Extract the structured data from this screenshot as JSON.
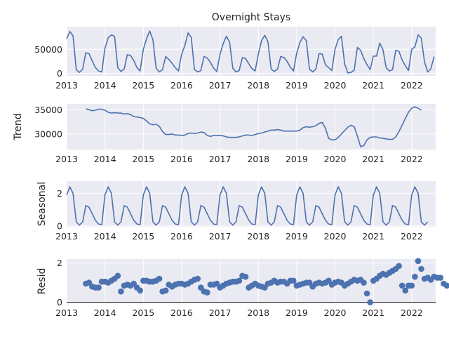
{
  "chart_data": {
    "title": "Overnight Stays",
    "type": "line",
    "x_start": "2013-01",
    "x_ticks": [
      "2013",
      "2014",
      "2015",
      "2016",
      "2017",
      "2018",
      "2019",
      "2020",
      "2021",
      "2022"
    ],
    "panels": [
      {
        "id": "observed",
        "ylabel": "",
        "type": "line",
        "ylim": [
          -5000,
          97000
        ],
        "yticks": [
          0,
          50000
        ],
        "values": [
          72000,
          87000,
          78000,
          8000,
          2000,
          9000,
          43000,
          41000,
          26000,
          12000,
          5000,
          3000,
          52000,
          74000,
          80000,
          77000,
          12000,
          4000,
          9000,
          39000,
          37000,
          27000,
          12000,
          5000,
          50000,
          72000,
          88000,
          70000,
          11000,
          3000,
          8000,
          35000,
          29000,
          21000,
          12000,
          5000,
          40000,
          58000,
          84000,
          75000,
          8000,
          3000,
          6000,
          35000,
          32000,
          23000,
          11000,
          4000,
          40000,
          62000,
          77000,
          65000,
          11000,
          3000,
          6000,
          33000,
          31000,
          20000,
          10000,
          5000,
          40000,
          68000,
          79000,
          66000,
          9000,
          4000,
          9000,
          35000,
          33000,
          25000,
          13000,
          5000,
          42000,
          64000,
          76000,
          68000,
          9000,
          3000,
          9000,
          41000,
          40000,
          18000,
          12000,
          6000,
          50000,
          70000,
          77000,
          20000,
          1000,
          2000,
          7000,
          54000,
          48000,
          31000,
          18000,
          8000,
          36000,
          36000,
          63000,
          49000,
          12000,
          5000,
          8000,
          48000,
          46000,
          28000,
          16000,
          6000,
          50000,
          55000,
          80000,
          73000,
          24000,
          3000,
          10000,
          35000
        ]
      },
      {
        "id": "trend",
        "ylabel": "Trend",
        "type": "line",
        "ylim": [
          26800,
          36200
        ],
        "yticks": [
          30000,
          35000
        ],
        "start_index": 6,
        "values": [
          35200,
          35000,
          34800,
          34900,
          35100,
          35100,
          34900,
          34500,
          34300,
          34400,
          34300,
          34300,
          34100,
          34200,
          34000,
          33600,
          33500,
          33400,
          33200,
          32700,
          32100,
          31900,
          32000,
          31600,
          30500,
          29900,
          29900,
          30000,
          29800,
          29800,
          29700,
          29800,
          30100,
          30200,
          30100,
          30200,
          30400,
          30300,
          29700,
          29500,
          29700,
          29700,
          29700,
          29600,
          29400,
          29300,
          29300,
          29300,
          29400,
          29600,
          29800,
          29800,
          29700,
          29900,
          30100,
          30200,
          30400,
          30600,
          30800,
          30800,
          30900,
          30800,
          30600,
          30600,
          30600,
          30600,
          30600,
          30800,
          31300,
          31500,
          31400,
          31500,
          31700,
          32200,
          32400,
          31200,
          29100,
          28800,
          28800,
          29300,
          30000,
          30700,
          31400,
          31800,
          31500,
          29600,
          27400,
          27600,
          28800,
          29300,
          29400,
          29400,
          29200,
          29100,
          29000,
          28900,
          28900,
          29400,
          30500,
          31800,
          33200,
          34500,
          35300,
          35600,
          35300,
          34900
        ]
      },
      {
        "id": "seasonal",
        "ylabel": "Seasonal",
        "type": "line",
        "ylim": [
          -0.05,
          2.75
        ],
        "yticks": [
          0,
          2
        ],
        "pattern": [
          1.9,
          2.4,
          2.0,
          0.25,
          0.05,
          0.25,
          1.25,
          1.15,
          0.75,
          0.35,
          0.12,
          0.08
        ],
        "periods": 9.5
      },
      {
        "id": "resid",
        "ylabel": "Resid",
        "type": "scatter",
        "ylim": [
          -0.05,
          2.2
        ],
        "yticks": [
          0,
          2
        ],
        "start_index": 6,
        "values": [
          0.95,
          1.0,
          0.8,
          0.75,
          0.75,
          1.05,
          1.05,
          1.0,
          1.1,
          1.2,
          1.35,
          0.55,
          0.85,
          0.9,
          0.85,
          0.95,
          0.75,
          0.6,
          1.1,
          1.1,
          1.05,
          1.05,
          1.1,
          1.2,
          0.55,
          0.6,
          0.9,
          0.8,
          0.9,
          0.95,
          0.95,
          0.9,
          0.95,
          1.05,
          1.15,
          1.2,
          0.75,
          0.55,
          0.5,
          0.9,
          0.9,
          0.95,
          0.75,
          0.85,
          0.95,
          1.0,
          1.05,
          1.05,
          1.1,
          1.35,
          1.3,
          0.75,
          0.85,
          0.95,
          0.85,
          0.8,
          0.75,
          0.95,
          1.0,
          1.1,
          1.0,
          1.05,
          1.05,
          0.95,
          1.1,
          1.1,
          0.85,
          0.9,
          0.95,
          1.0,
          1.0,
          0.8,
          0.95,
          1.0,
          0.95,
          1.0,
          1.1,
          0.9,
          1.0,
          1.05,
          1.0,
          0.85,
          0.95,
          1.05,
          1.15,
          1.1,
          1.15,
          1.0,
          0.45,
          0.0,
          1.1,
          1.2,
          1.35,
          1.45,
          1.4,
          1.5,
          1.6,
          1.7,
          1.85,
          0.85,
          0.6,
          0.85,
          0.85,
          1.3,
          2.1,
          1.7,
          1.2,
          1.25,
          1.15,
          1.3,
          1.25,
          1.25,
          0.95,
          0.85
        ]
      }
    ]
  }
}
